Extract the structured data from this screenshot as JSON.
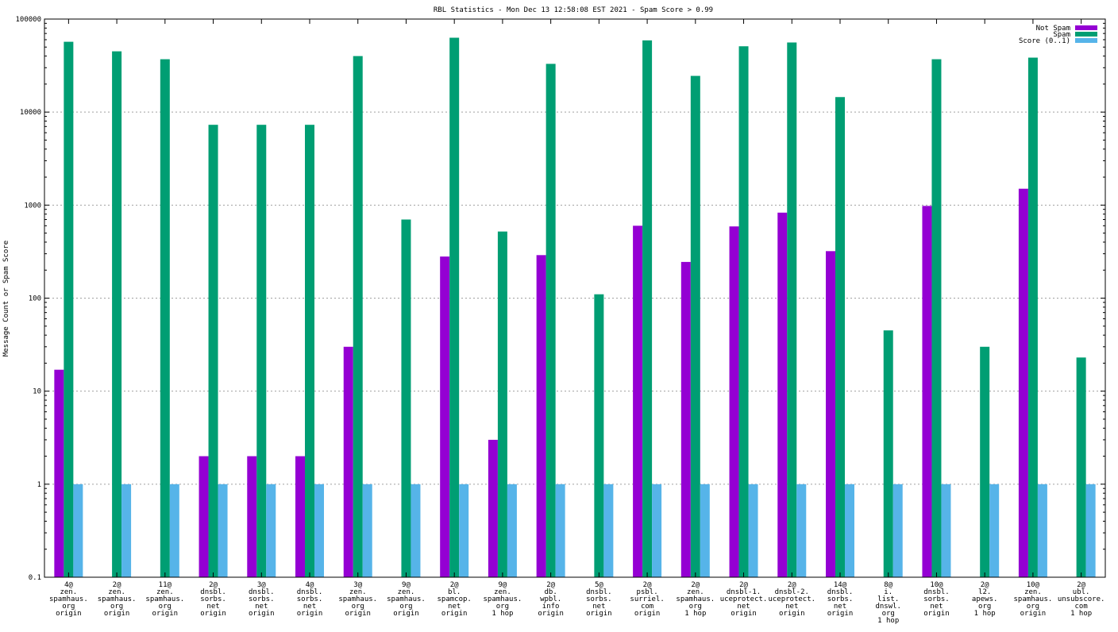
{
  "chart_data": {
    "type": "bar",
    "title": "RBL Statistics - Mon Dec 13 12:58:08 EST 2021 - Spam Score > 0.99",
    "xlabel": "",
    "ylabel": "Message Count or Spam Score",
    "yscale": "log",
    "ylim": [
      0.1,
      100000
    ],
    "grid": true,
    "legend_position": "top-right",
    "y_ticks": [
      {
        "value": 0.1,
        "label": "0.1"
      },
      {
        "value": 1,
        "label": "1"
      },
      {
        "value": 10,
        "label": "10"
      },
      {
        "value": 100,
        "label": "100"
      },
      {
        "value": 1000,
        "label": "1000"
      },
      {
        "value": 10000,
        "label": "10000"
      },
      {
        "value": 100000,
        "label": "100000"
      }
    ],
    "categories": [
      [
        "4@",
        "zen.",
        "spamhaus.",
        "org",
        "origin"
      ],
      [
        "2@",
        "zen.",
        "spamhaus.",
        "org",
        "origin"
      ],
      [
        "11@",
        "zen.",
        "spamhaus.",
        "org",
        "origin"
      ],
      [
        "2@",
        "dnsbl.",
        "sorbs.",
        "net",
        "origin"
      ],
      [
        "3@",
        "dnsbl.",
        "sorbs.",
        "net",
        "origin"
      ],
      [
        "4@",
        "dnsbl.",
        "sorbs.",
        "net",
        "origin"
      ],
      [
        "3@",
        "zen.",
        "spamhaus.",
        "org",
        "origin"
      ],
      [
        "9@",
        "zen.",
        "spamhaus.",
        "org",
        "origin"
      ],
      [
        "2@",
        "bl.",
        "spamcop.",
        "net",
        "origin"
      ],
      [
        "9@",
        "zen.",
        "spamhaus.",
        "org",
        "1 hop"
      ],
      [
        "2@",
        "db.",
        "wpbl.",
        "info",
        "origin"
      ],
      [
        "5@",
        "dnsbl.",
        "sorbs.",
        "net",
        "origin"
      ],
      [
        "2@",
        "psbl.",
        "surriel.",
        "com",
        "origin"
      ],
      [
        "2@",
        "zen.",
        "spamhaus.",
        "org",
        "1 hop"
      ],
      [
        "2@",
        "dnsbl-1.",
        "uceprotect.",
        "net",
        "origin"
      ],
      [
        "2@",
        "dnsbl-2.",
        "uceprotect.",
        "net",
        "origin"
      ],
      [
        "14@",
        "dnsbl.",
        "sorbs.",
        "net",
        "origin"
      ],
      [
        "8@",
        "i.",
        "list.",
        "dnswl.",
        "org",
        "1 hop"
      ],
      [
        "10@",
        "dnsbl.",
        "sorbs.",
        "net",
        "origin"
      ],
      [
        "2@",
        "l2.",
        "apews.",
        "org",
        "1 hop"
      ],
      [
        "10@",
        "zen.",
        "spamhaus.",
        "org",
        "origin"
      ],
      [
        "2@",
        "ubl.",
        "unsubscore.",
        "com",
        "1 hop"
      ]
    ],
    "series": [
      {
        "name": "Not Spam",
        "color": "#9400d3",
        "values": [
          17,
          null,
          null,
          2,
          2,
          2,
          30,
          null,
          280,
          3,
          290,
          null,
          600,
          245,
          590,
          830,
          320,
          null,
          980,
          null,
          1500,
          null
        ]
      },
      {
        "name": "Spam",
        "color": "#009e73",
        "values": [
          57000,
          45000,
          37000,
          7300,
          7300,
          7300,
          40000,
          700,
          63000,
          520,
          33000,
          110,
          59000,
          24500,
          51000,
          56000,
          14500,
          45,
          37000,
          30,
          38500,
          23
        ]
      },
      {
        "name": "Score (0..1)",
        "color": "#56b4e9",
        "values": [
          1,
          1,
          1,
          1,
          1,
          1,
          1,
          1,
          1,
          1,
          1,
          1,
          1,
          1,
          1,
          1,
          1,
          1,
          1,
          1,
          1,
          1
        ]
      }
    ]
  }
}
